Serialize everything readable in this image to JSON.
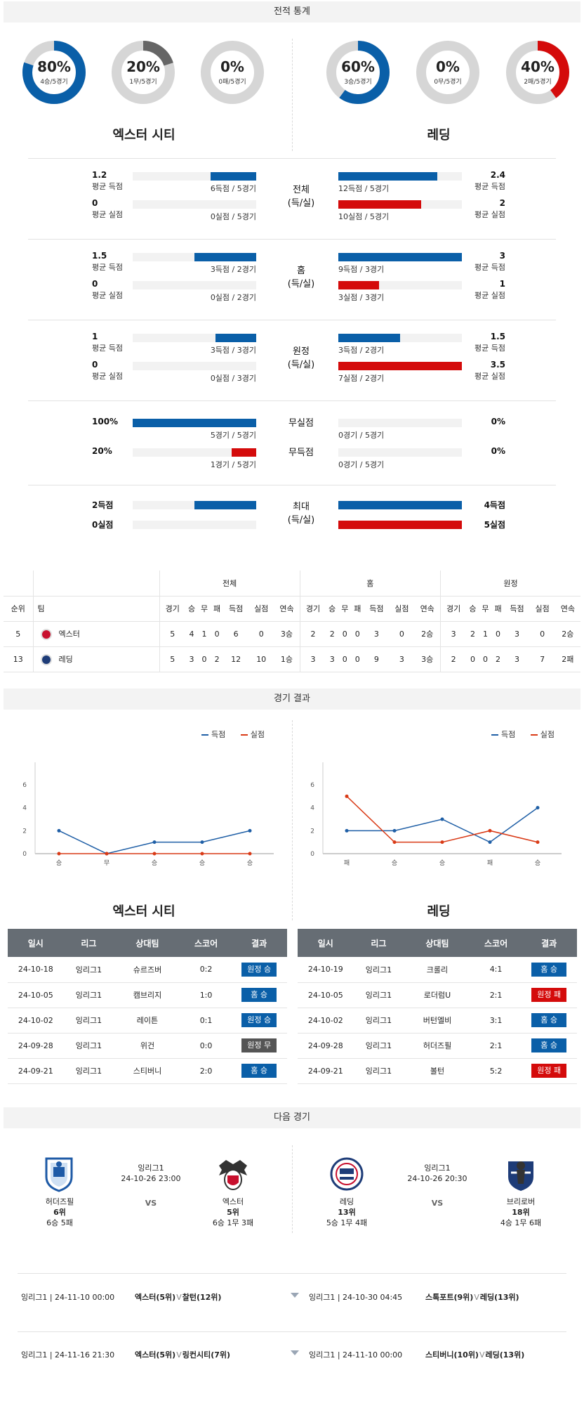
{
  "sections": {
    "stats": "전적 통계",
    "results": "경기 결과",
    "next": "다음 경기"
  },
  "teams": {
    "home": "엑스터 시티",
    "away": "레딩"
  },
  "donuts": {
    "home": [
      {
        "pct": "80%",
        "sub": "4승/5경기",
        "value": 0.8,
        "color": "#0a5fa8"
      },
      {
        "pct": "20%",
        "sub": "1무/5경기",
        "value": 0.2,
        "color": "#666666"
      },
      {
        "pct": "0%",
        "sub": "0패/5경기",
        "value": 0.0,
        "color": "#d40b0b"
      }
    ],
    "away": [
      {
        "pct": "60%",
        "sub": "3승/5경기",
        "value": 0.6,
        "color": "#0a5fa8"
      },
      {
        "pct": "0%",
        "sub": "0무/5경기",
        "value": 0.0,
        "color": "#666666"
      },
      {
        "pct": "40%",
        "sub": "2패/5경기",
        "value": 0.4,
        "color": "#d40b0b"
      }
    ]
  },
  "labels": {
    "avg_scored": "평균 득점",
    "avg_conceded": "평균 실점"
  },
  "groups": [
    {
      "cat": "전체\n(득/실)",
      "home": [
        {
          "v": "1.2",
          "note": "6득점 / 5경기",
          "fill": 0.37
        },
        {
          "v": "0",
          "note": "0실점 / 5경기",
          "fill": 0
        }
      ],
      "away": [
        {
          "v": "2.4",
          "note": "12득점 / 5경기",
          "fill": 0.8
        },
        {
          "v": "2",
          "note": "10실점 / 5경기",
          "fill": 0.67
        }
      ]
    },
    {
      "cat": "홈\n(득/실)",
      "home": [
        {
          "v": "1.5",
          "note": "3득점 / 2경기",
          "fill": 0.5
        },
        {
          "v": "0",
          "note": "0실점 / 2경기",
          "fill": 0
        }
      ],
      "away": [
        {
          "v": "3",
          "note": "9득점 / 3경기",
          "fill": 1
        },
        {
          "v": "1",
          "note": "3실점 / 3경기",
          "fill": 0.33
        }
      ]
    },
    {
      "cat": "원정\n(득/실)",
      "home": [
        {
          "v": "1",
          "note": "3득점 / 3경기",
          "fill": 0.33
        },
        {
          "v": "0",
          "note": "0실점 / 3경기",
          "fill": 0
        }
      ],
      "away": [
        {
          "v": "1.5",
          "note": "3득점 / 2경기",
          "fill": 0.5
        },
        {
          "v": "3.5",
          "note": "7실점 / 2경기",
          "fill": 1
        }
      ]
    }
  ],
  "clean": [
    {
      "cat": "무실점",
      "home_v": "100%",
      "home_note": "5경기 / 5경기",
      "home_fill": 1,
      "away_v": "0%",
      "away_note": "0경기 / 5경기",
      "away_fill": 0
    },
    {
      "cat": "무득점",
      "home_v": "20%",
      "home_note": "1경기 / 5경기",
      "home_fill": 0.2,
      "away_v": "0%",
      "away_note": "0경기 / 5경기",
      "away_fill": 0
    }
  ],
  "max": {
    "cat": "최대\n(득/실)",
    "home_scored": "2득점",
    "home_conceded": "0실점",
    "away_scored": "4득점",
    "away_conceded": "5실점",
    "home_fill": [
      0.5,
      0
    ],
    "away_fill": [
      1,
      1
    ]
  },
  "standings": {
    "groups": [
      "전체",
      "홈",
      "원정"
    ],
    "rank_h": "순위",
    "team_h": "팀",
    "cols": [
      "경기",
      "승",
      "무",
      "패",
      "득점",
      "실점",
      "연속"
    ],
    "rows": [
      {
        "rank": "5",
        "team": "엑스터",
        "vals": [
          "5",
          "4",
          "1",
          "0",
          "6",
          "0",
          "3승",
          "2",
          "2",
          "0",
          "0",
          "3",
          "0",
          "2승",
          "3",
          "2",
          "1",
          "0",
          "3",
          "0",
          "2승"
        ]
      },
      {
        "rank": "13",
        "team": "레딩",
        "vals": [
          "5",
          "3",
          "0",
          "2",
          "12",
          "10",
          "1승",
          "3",
          "3",
          "0",
          "0",
          "9",
          "3",
          "3승",
          "2",
          "0",
          "0",
          "2",
          "3",
          "7",
          "2패"
        ]
      }
    ]
  },
  "charts": {
    "legend": {
      "scored": "득점",
      "conceded": "실점"
    },
    "colors": {
      "scored": "#1f5fa6",
      "conceded": "#d93a16"
    },
    "yticks": [
      "0",
      "2",
      "4",
      "6"
    ],
    "home": {
      "x": [
        "승",
        "무",
        "승",
        "승",
        "승"
      ],
      "scored": [
        2,
        0,
        1,
        1,
        2
      ],
      "conceded": [
        0,
        0,
        0,
        0,
        0
      ],
      "ylim": [
        0,
        6
      ]
    },
    "away": {
      "x": [
        "패",
        "승",
        "승",
        "패",
        "승"
      ],
      "scored": [
        2,
        2,
        3,
        1,
        4
      ],
      "conceded": [
        5,
        1,
        1,
        2,
        1
      ],
      "ylim": [
        0,
        6
      ]
    }
  },
  "results": {
    "headers": [
      "일시",
      "리그",
      "상대팀",
      "스코어",
      "결과"
    ],
    "home": [
      {
        "date": "24-10-18",
        "league": "잉리그1",
        "opp": "슈르즈버",
        "score": "0:2",
        "res": "원정 승",
        "color": "#0a5fa8"
      },
      {
        "date": "24-10-05",
        "league": "잉리그1",
        "opp": "캠브리지",
        "score": "1:0",
        "res": "홈 승",
        "color": "#0a5fa8"
      },
      {
        "date": "24-10-02",
        "league": "잉리그1",
        "opp": "레이튼",
        "score": "0:1",
        "res": "원정 승",
        "color": "#0a5fa8"
      },
      {
        "date": "24-09-28",
        "league": "잉리그1",
        "opp": "위건",
        "score": "0:0",
        "res": "원정 무",
        "color": "#555555"
      },
      {
        "date": "24-09-21",
        "league": "잉리그1",
        "opp": "스티버니",
        "score": "2:0",
        "res": "홈 승",
        "color": "#0a5fa8"
      }
    ],
    "away": [
      {
        "date": "24-10-19",
        "league": "잉리그1",
        "opp": "크롤리",
        "score": "4:1",
        "res": "홈 승",
        "color": "#0a5fa8"
      },
      {
        "date": "24-10-05",
        "league": "잉리그1",
        "opp": "로더럼U",
        "score": "2:1",
        "res": "원정 패",
        "color": "#d40b0b"
      },
      {
        "date": "24-10-02",
        "league": "잉리그1",
        "opp": "버턴엘비",
        "score": "3:1",
        "res": "홈 승",
        "color": "#0a5fa8"
      },
      {
        "date": "24-09-28",
        "league": "잉리그1",
        "opp": "허더즈필",
        "score": "2:1",
        "res": "홈 승",
        "color": "#0a5fa8"
      },
      {
        "date": "24-09-21",
        "league": "잉리그1",
        "opp": "볼턴",
        "score": "5:2",
        "res": "원정 패",
        "color": "#d40b0b"
      }
    ]
  },
  "next": {
    "left": {
      "league": "잉리그1",
      "time": "24-10-26 23:00",
      "vs": "VS",
      "t1": {
        "name": "허더즈필",
        "rank": "6위",
        "rec": "6승 5패"
      },
      "t2": {
        "name": "엑스터",
        "rank": "5위",
        "rec": "6승 1무 3패"
      }
    },
    "right": {
      "league": "잉리그1",
      "time": "24-10-26 20:30",
      "vs": "VS",
      "t1": {
        "name": "레딩",
        "rank": "13위",
        "rec": "5승 1무 4패"
      },
      "t2": {
        "name": "브리로버",
        "rank": "18위",
        "rec": "4승 1무 6패"
      }
    }
  },
  "upcoming": [
    {
      "l": {
        "info": "잉리그1 | 24-11-10 00:00",
        "home": "엑스터(5위)",
        "vs": "V",
        "away": "찰턴(12위)"
      },
      "r": {
        "info": "잉리그1 | 24-10-30 04:45",
        "home": "스톡포트(9위)",
        "vs": "V",
        "away": "레딩(13위)"
      }
    },
    {
      "l": {
        "info": "잉리그1 | 24-11-16 21:30",
        "home": "엑스터(5위)",
        "vs": "V",
        "away": "링컨시티(7위)"
      },
      "r": {
        "info": "잉리그1 | 24-11-10 00:00",
        "home": "스티버니(10위)",
        "vs": "V",
        "away": "레딩(13위)"
      }
    }
  ]
}
